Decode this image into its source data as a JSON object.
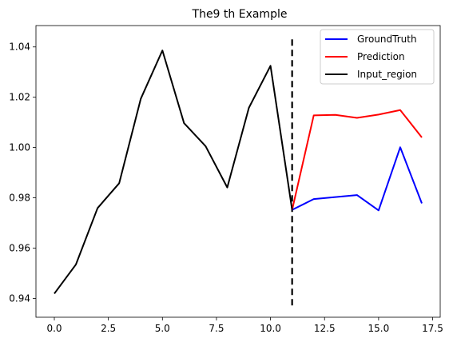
{
  "chart_data": {
    "type": "line",
    "title": "The9 th Example",
    "xlabel": "",
    "ylabel": "",
    "xlim": [
      -0.85,
      17.85
    ],
    "ylim": [
      0.9325,
      1.0485
    ],
    "xticks": [
      0.0,
      2.5,
      5.0,
      7.5,
      10.0,
      12.5,
      15.0,
      17.5
    ],
    "xtick_labels": [
      "0.0",
      "2.5",
      "5.0",
      "7.5",
      "10.0",
      "12.5",
      "15.0",
      "17.5"
    ],
    "yticks": [
      0.94,
      0.96,
      0.98,
      1.0,
      1.02,
      1.04
    ],
    "ytick_labels": [
      "0.94",
      "0.96",
      "0.98",
      "1.00",
      "1.02",
      "1.04"
    ],
    "grid": false,
    "legend_position": "top-right",
    "series": [
      {
        "name": "GroundTruth",
        "color": "#0000ff",
        "x": [
          11,
          12,
          13,
          14,
          15,
          16,
          17
        ],
        "y": [
          0.9752,
          0.9795,
          0.9803,
          0.9811,
          0.975,
          1.0001,
          0.9778
        ]
      },
      {
        "name": "Prediction",
        "color": "#ff0000",
        "x": [
          11,
          12,
          13,
          14,
          15,
          16,
          17
        ],
        "y": [
          0.9752,
          1.0128,
          1.013,
          1.0118,
          1.0131,
          1.0149,
          1.004
        ]
      },
      {
        "name": "Input_region",
        "color": "#000000",
        "x": [
          0,
          1,
          2,
          3,
          4,
          5,
          6,
          7,
          8,
          9,
          10,
          11
        ],
        "y": [
          0.9419,
          0.9535,
          0.9759,
          0.9858,
          1.0194,
          1.0386,
          1.0097,
          1.0005,
          0.9841,
          1.0158,
          1.0325,
          0.9752
        ]
      }
    ],
    "vline": {
      "x": 11,
      "y_range": [
        0.9372,
        1.0432
      ],
      "color": "#000000",
      "style": "dashed"
    }
  }
}
